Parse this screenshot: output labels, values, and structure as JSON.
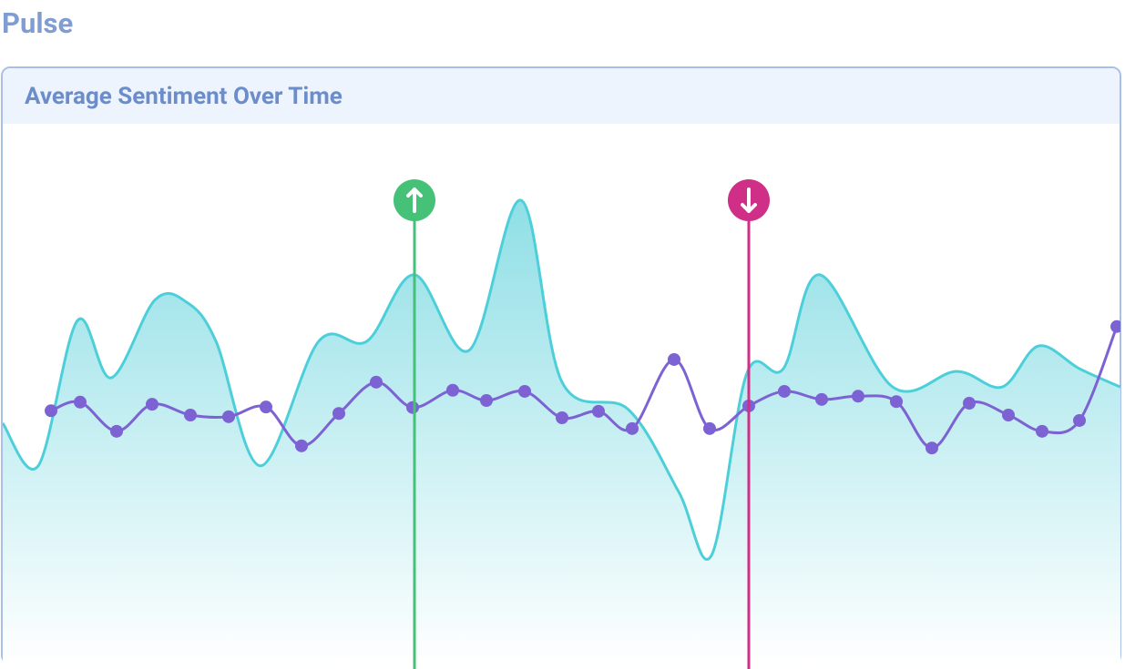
{
  "header": {
    "title": "Pulse"
  },
  "chart_data": {
    "type": "area-line",
    "title": "Average Sentiment Over Time",
    "xlim": [
      0,
      1227
    ],
    "ylim": [
      0,
      100
    ],
    "series": [
      {
        "color": "#4dcfd9",
        "fill": true,
        "x": [
          0,
          39,
          82,
          119,
          167,
          202,
          234,
          283,
          347,
          400,
          452,
          512,
          569,
          614,
          687,
          742,
          778,
          817,
          857,
          897,
          977,
          1047,
          1097,
          1137,
          1182,
          1227
        ],
        "values": [
          44.7,
          36.8,
          63.7,
          53.1,
          67.5,
          67.1,
          59.9,
          36.8,
          59.9,
          59.9,
          72.2,
          58.2,
          86.0,
          52.3,
          47.2,
          32.0,
          20.2,
          54.0,
          54.8,
          72.2,
          51.4,
          54.3,
          51.4,
          59.0,
          54.8,
          51.4
        ]
      },
      {
        "color": "#7c62d3",
        "fill": false,
        "points": true,
        "x": [
          53,
          85,
          125,
          164,
          206,
          248,
          289,
          328,
          369,
          410,
          450,
          494,
          531,
          573,
          614,
          654,
          691,
          737,
          776,
          819,
          858,
          899,
          939,
          981,
          1020,
          1061,
          1104,
          1141,
          1182,
          1223
        ],
        "values": [
          47.0,
          48.6,
          43.2,
          48.2,
          46.2,
          45.9,
          47.7,
          40.5,
          46.5,
          52.3,
          47.6,
          50.8,
          48.9,
          50.6,
          45.7,
          46.9,
          43.7,
          56.5,
          43.7,
          47.9,
          50.6,
          49.1,
          49.7,
          48.7,
          40.1,
          48.4,
          46.2,
          43.2,
          45.2,
          62.6
        ]
      }
    ],
    "markers": [
      {
        "x": 452,
        "color": "#45c178",
        "direction": "up"
      },
      {
        "x": 819,
        "color": "#cf2f86",
        "direction": "down"
      }
    ]
  }
}
